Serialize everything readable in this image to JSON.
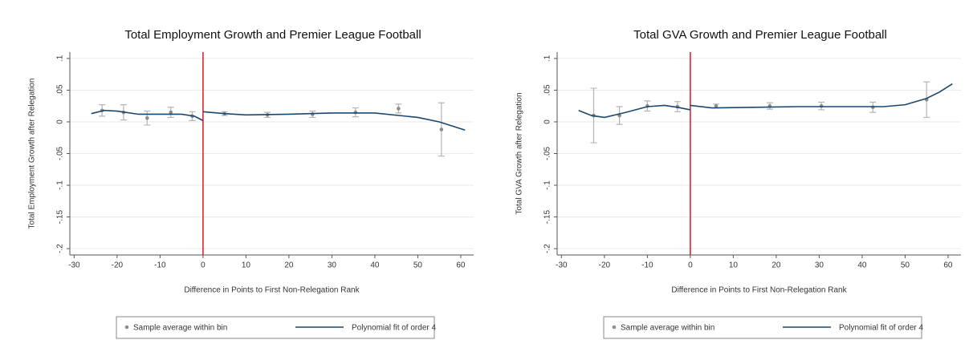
{
  "chart_data": [
    {
      "type": "scatter",
      "title": "Total Employment Growth and Premier League Football",
      "x_label": "Difference in Points to First Non-Relegation Rank",
      "y_label": "Total Employment Growth after Relegation",
      "xlim": [
        -31,
        63
      ],
      "ylim": [
        -0.21,
        0.11
      ],
      "xticks": [
        -30,
        -20,
        -10,
        0,
        10,
        20,
        30,
        40,
        50,
        60
      ],
      "yticks": [
        {
          "value": 0.1,
          "label": ".1"
        },
        {
          "value": 0.05,
          "label": ".05"
        },
        0,
        {
          "value": -0.05,
          "label": "-.05"
        },
        {
          "value": -0.1,
          "label": "-.1"
        },
        {
          "value": -0.15,
          "label": "-.15"
        },
        {
          "value": -0.2,
          "label": "-.2"
        }
      ],
      "grid": true,
      "reference_x": 0,
      "reference_color": "#e0141e",
      "series": [
        {
          "name": "Sample average within bin",
          "mark": "point",
          "color": "#8c8c8c",
          "x": [
            -23.5,
            -18.5,
            -13,
            -7.5,
            -2.5,
            5,
            15,
            25.5,
            35.5,
            45.5,
            55.5
          ],
          "values": [
            0.018,
            0.015,
            0.006,
            0.015,
            0.009,
            0.013,
            0.011,
            0.012,
            0.015,
            0.021,
            -0.012
          ],
          "errors": [
            0.009,
            0.012,
            0.011,
            0.008,
            0.007,
            0.003,
            0.004,
            0.005,
            0.007,
            0.007,
            0.042
          ]
        },
        {
          "name": "Polynomial fit of order 4",
          "mark": "line",
          "color": "#1a476f",
          "x": [
            -26,
            -23,
            -20,
            -15,
            -10,
            -5,
            -2,
            0,
            0,
            0,
            5,
            10,
            20,
            30,
            40,
            50,
            55,
            61
          ],
          "values": [
            0.013,
            0.018,
            0.017,
            0.012,
            0.012,
            0.012,
            0.009,
            0.002,
            null,
            0.016,
            0.013,
            0.011,
            0.012,
            0.014,
            0.014,
            0.007,
            0.0,
            -0.013
          ]
        }
      ]
    },
    {
      "type": "scatter",
      "title": "Total GVA Growth and Premier League Football",
      "x_label": "Difference in Points to First Non-Relegation Rank",
      "y_label": "Total GVA Growth after Relegation",
      "xlim": [
        -31,
        63
      ],
      "ylim": [
        -0.21,
        0.11
      ],
      "xticks": [
        -30,
        -20,
        -10,
        0,
        10,
        20,
        30,
        40,
        50,
        60
      ],
      "yticks": [
        {
          "value": 0.1,
          "label": ".1"
        },
        {
          "value": 0.05,
          "label": ".05"
        },
        0,
        {
          "value": -0.05,
          "label": "-.05"
        },
        {
          "value": -0.1,
          "label": "-.1"
        },
        {
          "value": -0.15,
          "label": "-.15"
        },
        {
          "value": -0.2,
          "label": "-.2"
        }
      ],
      "grid": true,
      "reference_x": 0,
      "reference_color": "#e0141e",
      "series": [
        {
          "name": "Sample average within bin",
          "mark": "point",
          "color": "#8c8c8c",
          "x": [
            -22.5,
            -16.5,
            -10,
            -3,
            6,
            18.5,
            30.5,
            42.5,
            55
          ],
          "values": [
            0.01,
            0.01,
            0.025,
            0.024,
            0.025,
            0.025,
            0.025,
            0.023,
            0.035
          ],
          "errors": [
            0.043,
            0.014,
            0.008,
            0.008,
            0.003,
            0.005,
            0.006,
            0.008,
            0.028
          ]
        },
        {
          "name": "Polynomial fit of order 4",
          "mark": "line",
          "color": "#1a476f",
          "x": [
            -26,
            -23,
            -20,
            -15,
            -10,
            -6,
            -3,
            0,
            0,
            0,
            5,
            15,
            25,
            35,
            45,
            50,
            55,
            58,
            61
          ],
          "values": [
            0.018,
            0.01,
            0.007,
            0.015,
            0.024,
            0.026,
            0.023,
            0.019,
            null,
            0.026,
            0.022,
            0.023,
            0.024,
            0.024,
            0.024,
            0.027,
            0.037,
            0.047,
            0.06
          ]
        }
      ]
    }
  ]
}
